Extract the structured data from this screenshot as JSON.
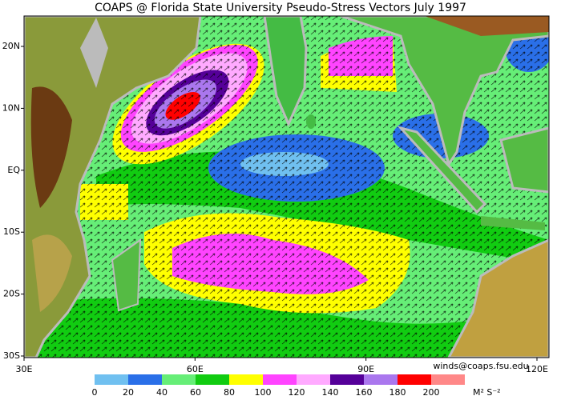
{
  "title": "COAPS @ Florida State University Pseudo-Stress Vectors  July 1997",
  "contact": "winds@coaps.fsu.edu",
  "lon_ticks": [
    {
      "value": 30,
      "label": "30E"
    },
    {
      "value": 60,
      "label": "60E"
    },
    {
      "value": 90,
      "label": "90E"
    },
    {
      "value": 120,
      "label": "120E"
    }
  ],
  "lat_ticks": [
    {
      "value": 20,
      "label": "20N"
    },
    {
      "value": 10,
      "label": "10N"
    },
    {
      "value": 0,
      "label": "EQ"
    },
    {
      "value": -10,
      "label": "10S"
    },
    {
      "value": -20,
      "label": "20S"
    },
    {
      "value": -30,
      "label": "30S"
    }
  ],
  "colorbar": {
    "ticks": [
      0,
      20,
      40,
      60,
      80,
      100,
      120,
      140,
      160,
      180,
      200
    ],
    "colors": [
      "#70c0f0",
      "#2a6fe8",
      "#66ee77",
      "#11cc11",
      "#ffff00",
      "#ff44ff",
      "#ffaaff",
      "#550099",
      "#aa77ee",
      "#ff0000",
      "#ff8888"
    ],
    "unit_label": "M² S⁻²"
  }
}
